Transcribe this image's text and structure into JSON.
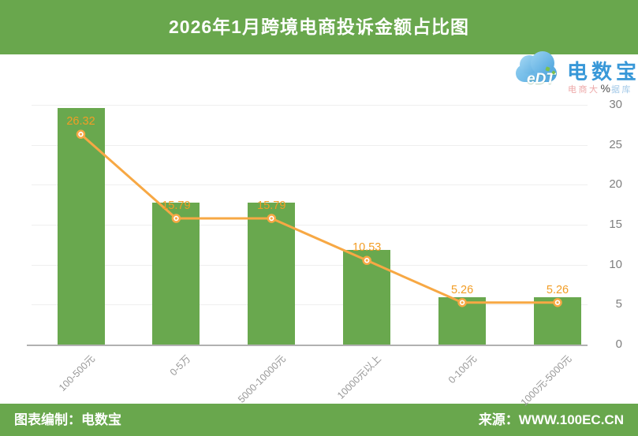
{
  "header": {
    "title": "2026年1月跨境电商投诉金额占比图"
  },
  "logo": {
    "cloud_text": "eDT",
    "brand": "电数宝",
    "subtitle_left": "电商大",
    "subtitle_right": "据库"
  },
  "footer": {
    "left": "图表编制：电数宝",
    "right": "来源：WWW.100EC.CN"
  },
  "chart_data": {
    "type": "bar",
    "overlay": "line",
    "title": "2026年1月跨境电商投诉金额占比图",
    "categories": [
      "100-500元",
      "0-5万",
      "5000-10000元",
      "10000元以上",
      "0-100元",
      "1000元-5000元"
    ],
    "values": [
      26.32,
      15.79,
      15.79,
      10.53,
      5.26,
      5.26
    ],
    "unit": "%",
    "y_ticks": [
      0,
      5,
      10,
      15,
      20,
      25,
      30
    ],
    "ylim": [
      0,
      30
    ],
    "grid": true,
    "legend": "none",
    "colors": {
      "bar": "#69a84e",
      "line": "#f7a844",
      "value_label": "#f29d25",
      "accent_green": "#69a74d",
      "brand_blue": "#3898d8"
    }
  }
}
